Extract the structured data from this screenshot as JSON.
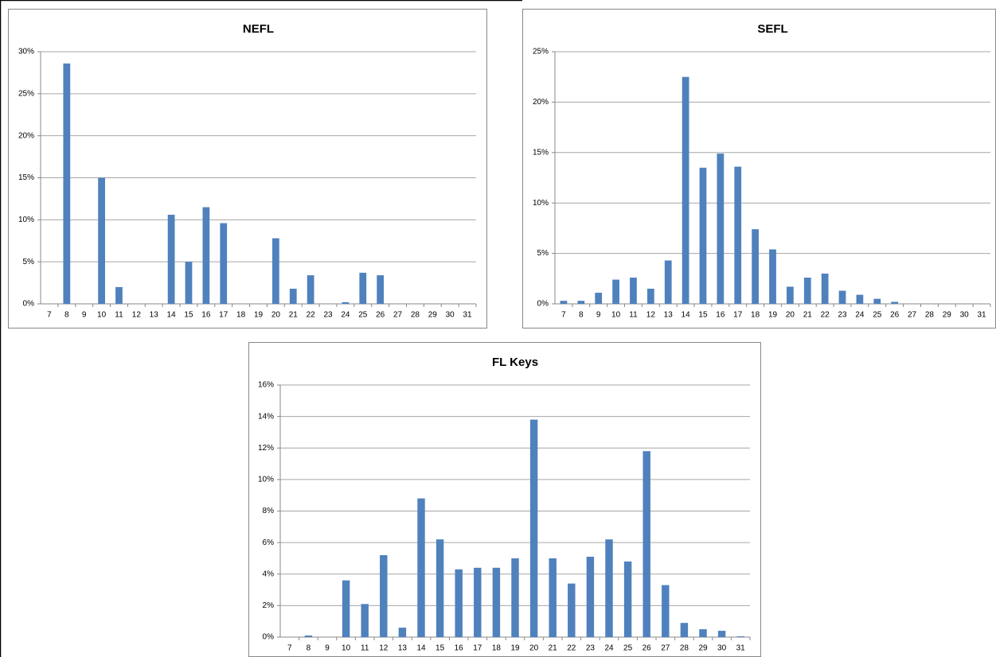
{
  "chart_data": [
    {
      "type": "bar",
      "title": "NEFL",
      "color": "#4f81bd",
      "grid": true,
      "categories": [
        "7",
        "8",
        "9",
        "10",
        "11",
        "12",
        "13",
        "14",
        "15",
        "16",
        "17",
        "18",
        "19",
        "20",
        "21",
        "22",
        "23",
        "24",
        "25",
        "26",
        "27",
        "28",
        "29",
        "30",
        "31"
      ],
      "values": [
        0,
        28.6,
        0,
        15.0,
        2.0,
        0,
        0,
        10.6,
        5.0,
        11.5,
        9.6,
        0,
        0,
        7.8,
        1.8,
        3.4,
        0,
        0.2,
        3.7,
        3.4,
        0,
        0,
        0,
        0,
        0
      ],
      "ylim": [
        0,
        30
      ],
      "yticks": [
        {
          "value": 0,
          "label": "0%"
        },
        {
          "value": 5,
          "label": "5%"
        },
        {
          "value": 10,
          "label": "10%"
        },
        {
          "value": 15,
          "label": "15%"
        },
        {
          "value": 20,
          "label": "20%"
        },
        {
          "value": 25,
          "label": "25%"
        },
        {
          "value": 30,
          "label": "30%"
        }
      ]
    },
    {
      "type": "bar",
      "title": "SEFL",
      "color": "#4f81bd",
      "grid": true,
      "categories": [
        "7",
        "8",
        "9",
        "10",
        "11",
        "12",
        "13",
        "14",
        "15",
        "16",
        "17",
        "18",
        "19",
        "20",
        "21",
        "22",
        "23",
        "24",
        "25",
        "26",
        "27",
        "28",
        "29",
        "30",
        "31"
      ],
      "values": [
        0.3,
        0.3,
        1.1,
        2.4,
        2.6,
        1.5,
        4.3,
        22.5,
        13.5,
        14.9,
        13.6,
        7.4,
        5.4,
        1.7,
        2.6,
        3.0,
        1.3,
        0.9,
        0.5,
        0.2,
        0,
        0,
        0,
        0,
        0
      ],
      "ylim": [
        0,
        25
      ],
      "yticks": [
        {
          "value": 0,
          "label": "0%"
        },
        {
          "value": 5,
          "label": "5%"
        },
        {
          "value": 10,
          "label": "10%"
        },
        {
          "value": 15,
          "label": "15%"
        },
        {
          "value": 20,
          "label": "20%"
        },
        {
          "value": 25,
          "label": "25%"
        }
      ]
    },
    {
      "type": "bar",
      "title": "FL Keys",
      "color": "#4f81bd",
      "grid": true,
      "categories": [
        "7",
        "8",
        "9",
        "10",
        "11",
        "12",
        "13",
        "14",
        "15",
        "16",
        "17",
        "18",
        "19",
        "20",
        "21",
        "22",
        "23",
        "24",
        "25",
        "26",
        "27",
        "28",
        "29",
        "30",
        "31"
      ],
      "values": [
        0,
        0.1,
        0,
        3.6,
        2.1,
        5.2,
        0.6,
        8.8,
        6.2,
        4.3,
        4.4,
        4.4,
        5.0,
        13.8,
        5.0,
        3.4,
        5.1,
        6.2,
        4.8,
        11.8,
        3.3,
        0.9,
        0.5,
        0.4,
        0.05
      ],
      "ylim": [
        0,
        16
      ],
      "yticks": [
        {
          "value": 0,
          "label": "0%"
        },
        {
          "value": 2,
          "label": "2%"
        },
        {
          "value": 4,
          "label": "4%"
        },
        {
          "value": 6,
          "label": "6%"
        },
        {
          "value": 8,
          "label": "8%"
        },
        {
          "value": 10,
          "label": "10%"
        },
        {
          "value": 12,
          "label": "12%"
        },
        {
          "value": 14,
          "label": "14%"
        },
        {
          "value": 16,
          "label": "16%"
        }
      ]
    }
  ]
}
